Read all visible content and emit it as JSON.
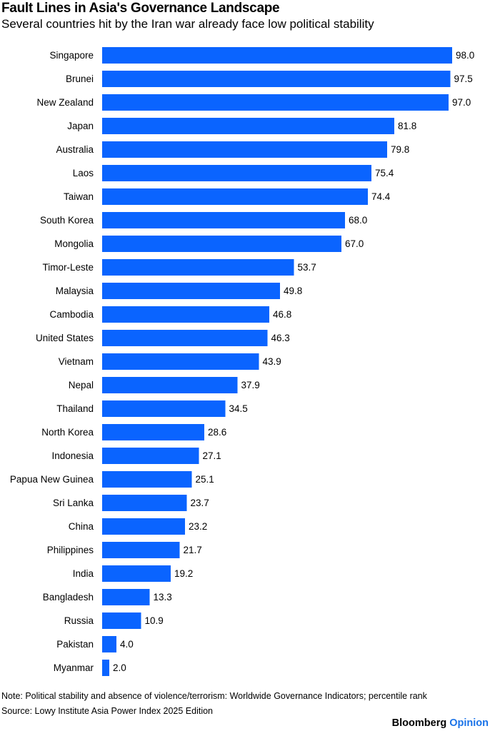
{
  "header": {
    "title": "Fault Lines in Asia's Governance Landscape",
    "subtitle": "Several countries hit by the Iran war already face low political stability"
  },
  "footer": {
    "note": "Note: Political stability and absence of violence/terrorism: Worldwide Governance Indicators; percentile rank",
    "source": "Source: Lowy Institute Asia Power Index 2025 Edition",
    "brand_main": "Bloomberg",
    "brand_sub": "Opinion"
  },
  "colors": {
    "bar": "#0a64ff"
  },
  "chart_data": {
    "type": "bar",
    "orientation": "horizontal",
    "title": "Fault Lines in Asia's Governance Landscape",
    "subtitle": "Several countries hit by the Iran war already face low political stability",
    "xlabel": "",
    "ylabel": "",
    "xlim": [
      0,
      100
    ],
    "grid": false,
    "categories": [
      "Singapore",
      "Brunei",
      "New Zealand",
      "Japan",
      "Australia",
      "Laos",
      "Taiwan",
      "South Korea",
      "Mongolia",
      "Timor-Leste",
      "Malaysia",
      "Cambodia",
      "United States",
      "Vietnam",
      "Nepal",
      "Thailand",
      "North Korea",
      "Indonesia",
      "Papua New Guinea",
      "Sri Lanka",
      "China",
      "Philippines",
      "India",
      "Bangladesh",
      "Russia",
      "Pakistan",
      "Myanmar"
    ],
    "values": [
      98.0,
      97.5,
      97.0,
      81.8,
      79.8,
      75.4,
      74.4,
      68.0,
      67.0,
      53.7,
      49.8,
      46.8,
      46.3,
      43.9,
      37.9,
      34.5,
      28.6,
      27.1,
      25.1,
      23.7,
      23.2,
      21.7,
      19.2,
      13.3,
      10.9,
      4.0,
      2.0
    ],
    "value_labels": [
      "98.0",
      "97.5",
      "97.0",
      "81.8",
      "79.8",
      "75.4",
      "74.4",
      "68.0",
      "67.0",
      "53.7",
      "49.8",
      "46.8",
      "46.3",
      "43.9",
      "37.9",
      "34.5",
      "28.6",
      "27.1",
      "25.1",
      "23.7",
      "23.2",
      "21.7",
      "19.2",
      "13.3",
      "10.9",
      "4.0",
      "2.0"
    ]
  }
}
